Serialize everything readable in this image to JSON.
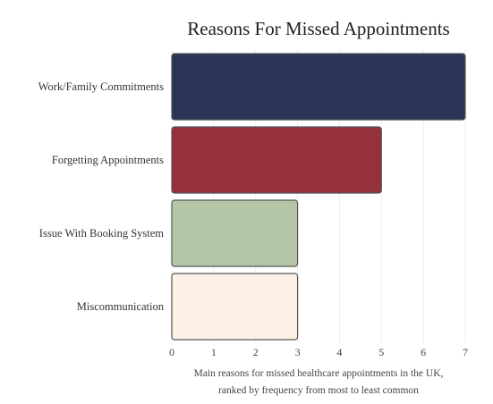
{
  "chart_data": {
    "type": "bar",
    "orientation": "horizontal",
    "title": "Reasons For Missed Appointments",
    "categories": [
      "Work/Family Commitments",
      "Forgetting Appointments",
      "Issue With Booking System",
      "Miscommunication"
    ],
    "values": [
      7,
      5,
      3,
      3
    ],
    "colors": [
      "#293457",
      "#94313d",
      "#b4c6a6",
      "#fdf1e6"
    ],
    "xticks": [
      "0",
      "1",
      "2",
      "3",
      "4",
      "5",
      "6",
      "7"
    ],
    "xlim": [
      0,
      7
    ],
    "grid": true,
    "caption": [
      "Main reasons for missed healthcare appointments in the UK,",
      "ranked by frequency from most to least common"
    ]
  }
}
